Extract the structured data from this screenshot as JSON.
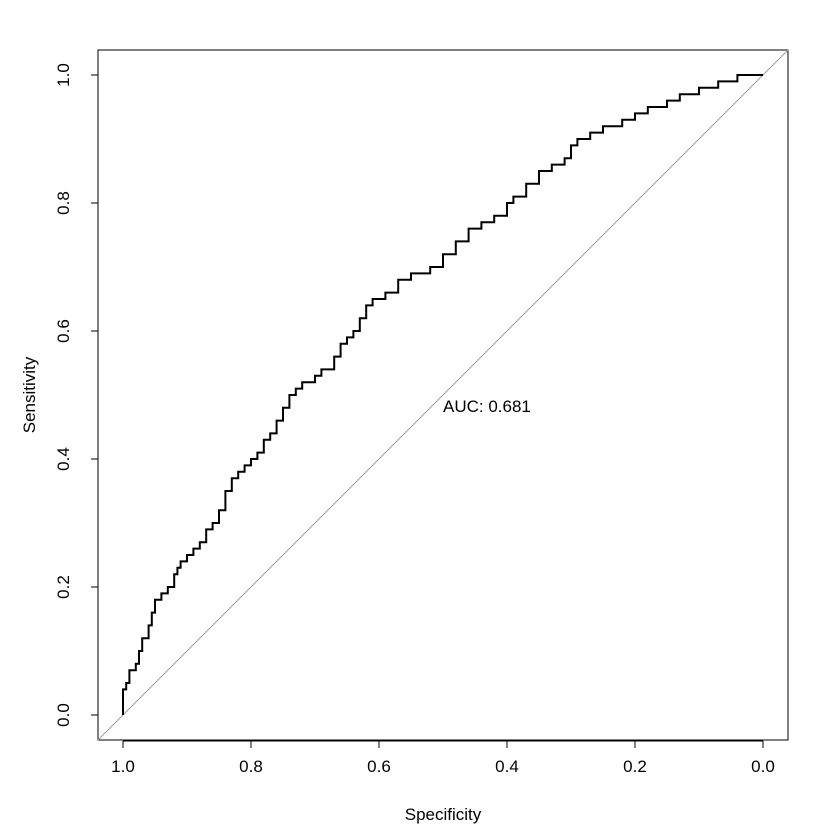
{
  "chart_data": {
    "type": "line",
    "title": "",
    "xlabel": "Specificity",
    "ylabel": "Sensitivity",
    "x_reversed": true,
    "xlim": [
      1.0,
      0.0
    ],
    "ylim": [
      0.0,
      1.0
    ],
    "x_ticks": [
      "1.0",
      "0.8",
      "0.6",
      "0.4",
      "0.2",
      "0.0"
    ],
    "y_ticks": [
      "0.0",
      "0.2",
      "0.4",
      "0.6",
      "0.8",
      "1.0"
    ],
    "grid": false,
    "legend": "none",
    "annotation": "AUC: 0.681",
    "reference_line": {
      "from": [
        1.0,
        0.0
      ],
      "to": [
        0.0,
        1.0
      ],
      "color": "#a0a0a0"
    },
    "series": [
      {
        "color": "#000000",
        "points": [
          [
            1.0,
            0.0
          ],
          [
            0.995,
            0.04
          ],
          [
            0.99,
            0.05
          ],
          [
            0.98,
            0.07
          ],
          [
            0.975,
            0.08
          ],
          [
            0.97,
            0.1
          ],
          [
            0.96,
            0.12
          ],
          [
            0.955,
            0.14
          ],
          [
            0.95,
            0.16
          ],
          [
            0.94,
            0.18
          ],
          [
            0.93,
            0.19
          ],
          [
            0.92,
            0.2
          ],
          [
            0.915,
            0.22
          ],
          [
            0.91,
            0.23
          ],
          [
            0.9,
            0.24
          ],
          [
            0.89,
            0.25
          ],
          [
            0.88,
            0.26
          ],
          [
            0.87,
            0.27
          ],
          [
            0.86,
            0.29
          ],
          [
            0.85,
            0.3
          ],
          [
            0.84,
            0.32
          ],
          [
            0.83,
            0.35
          ],
          [
            0.82,
            0.37
          ],
          [
            0.81,
            0.38
          ],
          [
            0.8,
            0.39
          ],
          [
            0.79,
            0.4
          ],
          [
            0.78,
            0.41
          ],
          [
            0.77,
            0.43
          ],
          [
            0.76,
            0.44
          ],
          [
            0.75,
            0.46
          ],
          [
            0.74,
            0.48
          ],
          [
            0.73,
            0.5
          ],
          [
            0.72,
            0.51
          ],
          [
            0.7,
            0.52
          ],
          [
            0.69,
            0.53
          ],
          [
            0.67,
            0.54
          ],
          [
            0.66,
            0.56
          ],
          [
            0.65,
            0.58
          ],
          [
            0.64,
            0.59
          ],
          [
            0.63,
            0.6
          ],
          [
            0.62,
            0.62
          ],
          [
            0.61,
            0.64
          ],
          [
            0.59,
            0.65
          ],
          [
            0.57,
            0.66
          ],
          [
            0.55,
            0.68
          ],
          [
            0.52,
            0.69
          ],
          [
            0.5,
            0.7
          ],
          [
            0.48,
            0.72
          ],
          [
            0.46,
            0.74
          ],
          [
            0.44,
            0.76
          ],
          [
            0.42,
            0.77
          ],
          [
            0.4,
            0.78
          ],
          [
            0.39,
            0.8
          ],
          [
            0.37,
            0.81
          ],
          [
            0.35,
            0.83
          ],
          [
            0.33,
            0.85
          ],
          [
            0.31,
            0.86
          ],
          [
            0.3,
            0.87
          ],
          [
            0.29,
            0.89
          ],
          [
            0.27,
            0.9
          ],
          [
            0.25,
            0.91
          ],
          [
            0.22,
            0.92
          ],
          [
            0.2,
            0.93
          ],
          [
            0.18,
            0.94
          ],
          [
            0.15,
            0.95
          ],
          [
            0.13,
            0.96
          ],
          [
            0.1,
            0.97
          ],
          [
            0.07,
            0.98
          ],
          [
            0.04,
            0.99
          ],
          [
            0.02,
            1.0
          ],
          [
            0.0,
            1.0
          ]
        ]
      }
    ]
  }
}
